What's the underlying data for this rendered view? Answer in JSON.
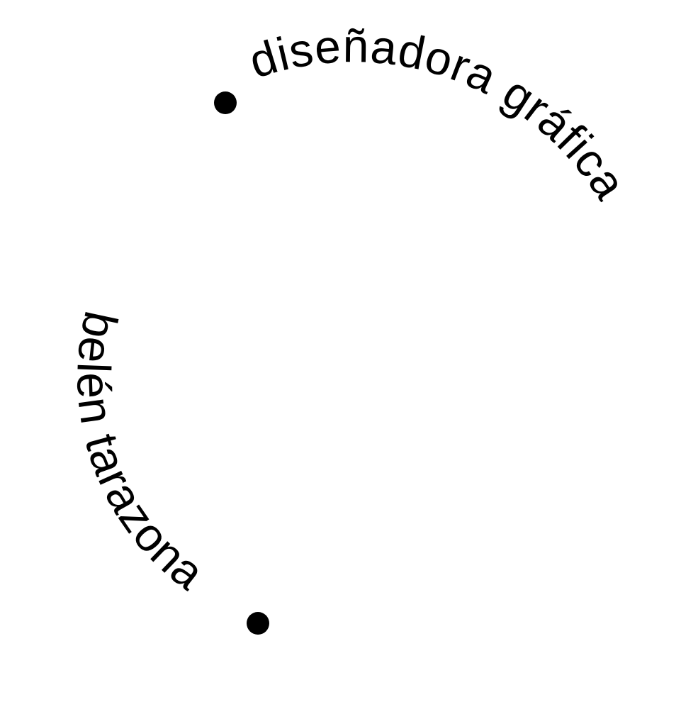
{
  "logo": {
    "top_text": "diseñadora gráfica",
    "bottom_text": "belén tarazona",
    "colors": {
      "ink": "#000000",
      "background": "#ffffff"
    }
  }
}
